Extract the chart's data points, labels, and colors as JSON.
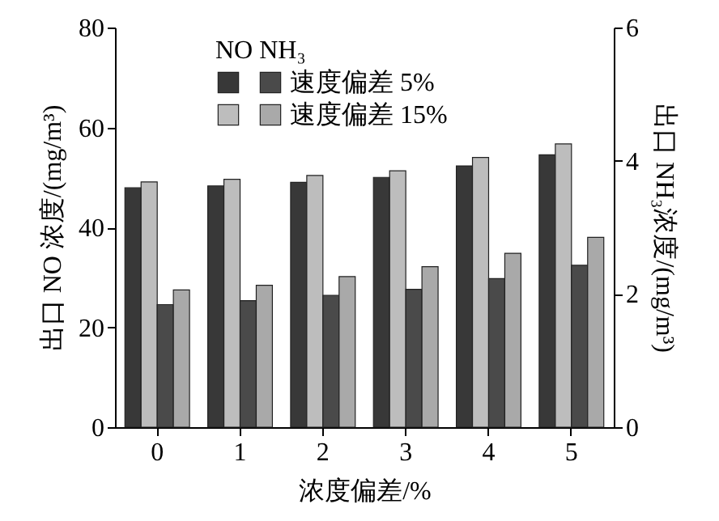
{
  "chart_data": {
    "type": "bar",
    "xlabel": "浓度偏差/%",
    "ylabel": "出口 NO 浓度/(mg/m³)",
    "y2label": "出口 NH₃浓度/(mg/m³)",
    "legend_title": "NO  NH₃",
    "categories": [
      "0",
      "1",
      "2",
      "3",
      "4",
      "5"
    ],
    "series": [
      {
        "color": "#383838",
        "values": [
          47.9,
          48.3,
          49.0,
          50.0,
          52.3,
          54.5
        ]
      },
      {
        "color": "#bdbdbd",
        "values": [
          49.1,
          49.6,
          50.4,
          51.3,
          54.0,
          56.7
        ]
      },
      {
        "name": "速度偏差 5%",
        "color": "#4a4a4a",
        "axis": "y2",
        "values": [
          1.84,
          1.9,
          1.98,
          2.07,
          2.23,
          2.43
        ]
      },
      {
        "name": "速度偏差 15%",
        "color": "#a9a9a9",
        "axis": "y2",
        "values": [
          2.06,
          2.13,
          2.26,
          2.41,
          2.61,
          2.85
        ]
      }
    ],
    "ylim": [
      0,
      80
    ],
    "yticks": [
      0,
      20,
      40,
      60,
      80
    ],
    "y2lim": [
      0,
      6
    ],
    "y2ticks": [
      0,
      2,
      4,
      6
    ],
    "legend": "top",
    "grid": false
  }
}
